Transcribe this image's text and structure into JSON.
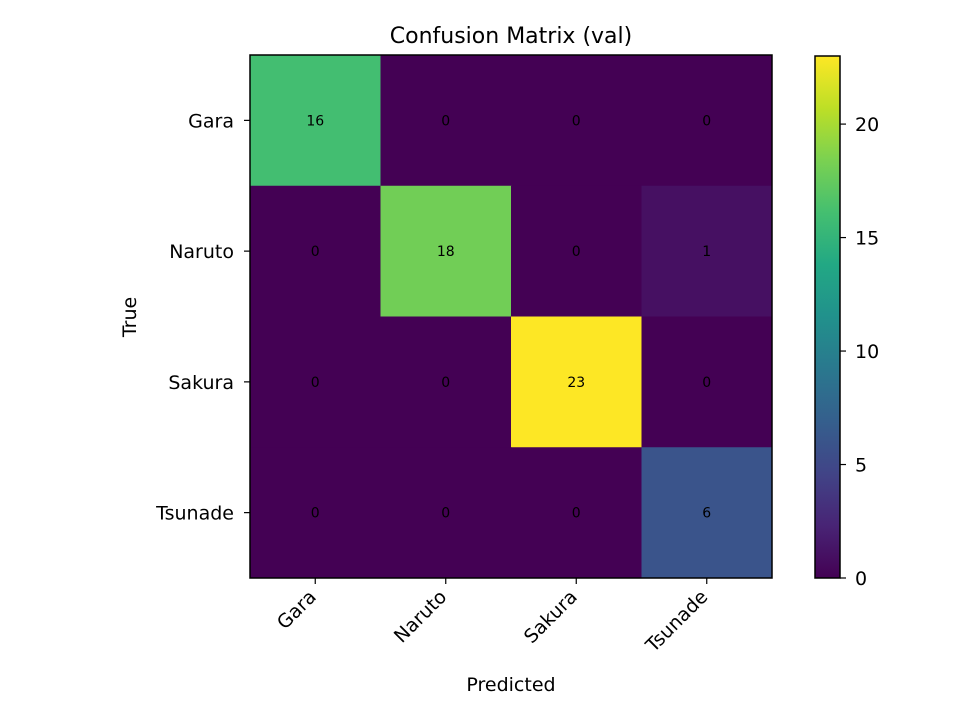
{
  "chart_data": {
    "type": "heatmap",
    "title": "Confusion Matrix (val)",
    "xlabel": "Predicted",
    "ylabel": "True",
    "x_categories": [
      "Gara",
      "Naruto",
      "Sakura",
      "Tsunade"
    ],
    "y_categories": [
      "Gara",
      "Naruto",
      "Sakura",
      "Tsunade"
    ],
    "values": [
      [
        16,
        0,
        0,
        0
      ],
      [
        0,
        18,
        0,
        1
      ],
      [
        0,
        0,
        23,
        0
      ],
      [
        0,
        0,
        0,
        6
      ]
    ],
    "colormap": "viridis",
    "color_range": [
      0,
      23
    ],
    "colorbar_ticks": [
      0,
      5,
      10,
      15,
      20
    ]
  }
}
